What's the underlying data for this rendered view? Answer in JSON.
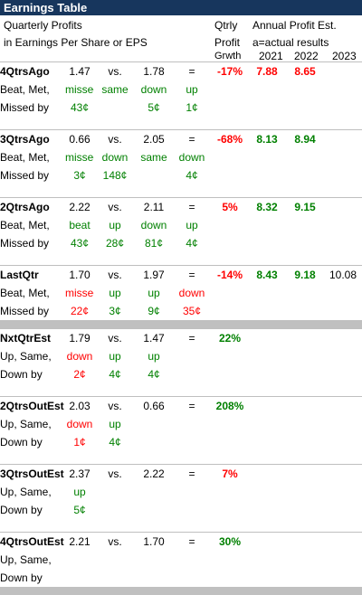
{
  "title": "Earnings Table",
  "header": {
    "line1": "Quarterly Profits",
    "line2": "in Earnings Per Share or EPS",
    "qtrly1": "Qtrly",
    "qtrly2": "Profit",
    "qtrly3": "Grwth",
    "annual": "Annual Profit Est.",
    "actual_note": "a=actual results",
    "years": [
      "2021",
      "2022",
      "2023"
    ]
  },
  "blocks": [
    {
      "label": "4QtrsAgo",
      "sub1": "Beat, Met,",
      "sub2": "Missed by",
      "eps1": "1.47",
      "vs": "vs.",
      "eps2": "1.78",
      "eq": "=",
      "growth": "-17%",
      "growth_color": "red",
      "y2021": "7.88",
      "y2021_color": "red",
      "y2022": "8.65",
      "y2022_color": "red",
      "y2023": "",
      "r2": [
        {
          "t": "missed",
          "c": "green"
        },
        {
          "t": "same",
          "c": "green"
        },
        {
          "t": "down",
          "c": "green"
        },
        {
          "t": "up",
          "c": "green"
        }
      ],
      "r3": [
        {
          "t": "43¢",
          "c": "green"
        },
        {
          "t": "",
          "c": "green"
        },
        {
          "t": "5¢",
          "c": "green"
        },
        {
          "t": "1¢",
          "c": "green"
        }
      ]
    },
    {
      "label": "3QtrsAgo",
      "sub1": "Beat, Met,",
      "sub2": "Missed by",
      "eps1": "0.66",
      "vs": "vs.",
      "eps2": "2.05",
      "eq": "=",
      "growth": "-68%",
      "growth_color": "red",
      "y2021": "8.13",
      "y2021_color": "green",
      "y2022": "8.94",
      "y2022_color": "green",
      "y2023": "",
      "r2": [
        {
          "t": "missed",
          "c": "green"
        },
        {
          "t": "down",
          "c": "green"
        },
        {
          "t": "same",
          "c": "green"
        },
        {
          "t": "down",
          "c": "green"
        }
      ],
      "r3": [
        {
          "t": "3¢",
          "c": "green"
        },
        {
          "t": "148¢",
          "c": "green"
        },
        {
          "t": "",
          "c": "green"
        },
        {
          "t": "4¢",
          "c": "green"
        }
      ]
    },
    {
      "label": "2QtrsAgo",
      "sub1": "Beat, Met,",
      "sub2": "Missed by",
      "eps1": "2.22",
      "vs": "vs.",
      "eps2": "2.11",
      "eq": "=",
      "growth": "5%",
      "growth_color": "red",
      "y2021": "8.32",
      "y2021_color": "green",
      "y2022": "9.15",
      "y2022_color": "green",
      "y2023": "",
      "r2": [
        {
          "t": "beat",
          "c": "green"
        },
        {
          "t": "up",
          "c": "green"
        },
        {
          "t": "down",
          "c": "green"
        },
        {
          "t": "up",
          "c": "green"
        }
      ],
      "r3": [
        {
          "t": "43¢",
          "c": "green"
        },
        {
          "t": "28¢",
          "c": "green"
        },
        {
          "t": "81¢",
          "c": "green"
        },
        {
          "t": "4¢",
          "c": "green"
        }
      ]
    },
    {
      "label": "LastQtr",
      "sub1": "Beat, Met,",
      "sub2": "Missed by",
      "eps1": "1.70",
      "vs": "vs.",
      "eps2": "1.97",
      "eq": "=",
      "growth": "-14%",
      "growth_color": "red",
      "y2021": "8.43",
      "y2021_color": "green",
      "y2022": "9.18",
      "y2022_color": "green",
      "y2023": "10.08",
      "r2": [
        {
          "t": "missed",
          "c": "red"
        },
        {
          "t": "up",
          "c": "green"
        },
        {
          "t": "up",
          "c": "green"
        },
        {
          "t": "down",
          "c": "red"
        }
      ],
      "r3": [
        {
          "t": "22¢",
          "c": "red"
        },
        {
          "t": "3¢",
          "c": "green"
        },
        {
          "t": "9¢",
          "c": "green"
        },
        {
          "t": "35¢",
          "c": "red"
        }
      ]
    }
  ],
  "est_blocks": [
    {
      "label": "NxtQtrEst",
      "sub1": "Up, Same,",
      "sub2": "Down by",
      "eps1": "1.79",
      "vs": "vs.",
      "eps2": "1.47",
      "eq": "=",
      "growth": "22%",
      "growth_color": "green",
      "r2": [
        {
          "t": "down",
          "c": "red"
        },
        {
          "t": "up",
          "c": "green"
        },
        {
          "t": "up",
          "c": "green"
        }
      ],
      "r3": [
        {
          "t": "2¢",
          "c": "red"
        },
        {
          "t": "4¢",
          "c": "green"
        },
        {
          "t": "4¢",
          "c": "green"
        }
      ]
    },
    {
      "label": "2QtrsOutEst",
      "sub1": "Up, Same,",
      "sub2": "Down by",
      "eps1": "2.03",
      "vs": "vs.",
      "eps2": "0.66",
      "eq": "=",
      "growth": "208%",
      "growth_color": "green",
      "r2": [
        {
          "t": "down",
          "c": "red"
        },
        {
          "t": "up",
          "c": "green"
        },
        {
          "t": "",
          "c": "green"
        }
      ],
      "r3": [
        {
          "t": "1¢",
          "c": "red"
        },
        {
          "t": "4¢",
          "c": "green"
        },
        {
          "t": "",
          "c": "green"
        }
      ]
    },
    {
      "label": "3QtrsOutEst",
      "sub1": "Up, Same,",
      "sub2": "Down by",
      "eps1": "2.37",
      "vs": "vs.",
      "eps2": "2.22",
      "eq": "=",
      "growth": "7%",
      "growth_color": "red",
      "r2": [
        {
          "t": "up",
          "c": "green"
        },
        {
          "t": "",
          "c": "green"
        },
        {
          "t": "",
          "c": "green"
        }
      ],
      "r3": [
        {
          "t": "5¢",
          "c": "green"
        },
        {
          "t": "",
          "c": "green"
        },
        {
          "t": "",
          "c": "green"
        }
      ]
    },
    {
      "label": "4QtrsOutEst",
      "sub1": "Up, Same,",
      "sub2": "Down by",
      "eps1": "2.21",
      "vs": "vs.",
      "eps2": "1.70",
      "eq": "=",
      "growth": "30%",
      "growth_color": "green",
      "r2": [
        {
          "t": "",
          "c": "green"
        },
        {
          "t": "",
          "c": "green"
        },
        {
          "t": "",
          "c": "green"
        }
      ],
      "r3": [
        {
          "t": "",
          "c": "green"
        },
        {
          "t": "",
          "c": "green"
        },
        {
          "t": "",
          "c": "green"
        }
      ]
    }
  ]
}
